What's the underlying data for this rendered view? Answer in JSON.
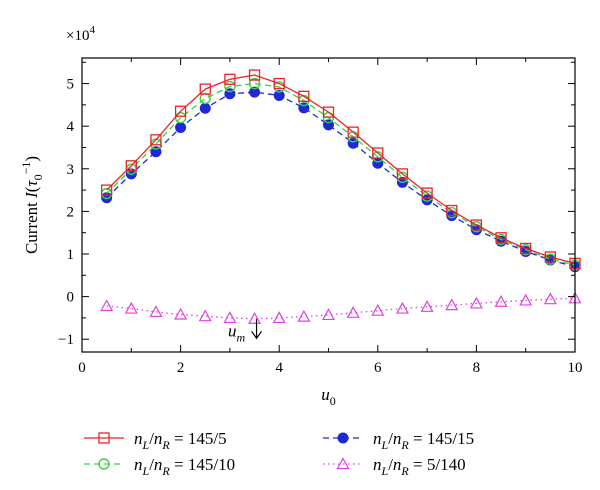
{
  "chart_data": {
    "type": "line",
    "multiplier_label": "×10⁴",
    "xlabel": "u0",
    "ylabel": "Current I(τ0⁻¹)",
    "xlim": [
      0,
      10
    ],
    "ylim": [
      -1.3,
      5.6
    ],
    "xticks": [
      0,
      2,
      4,
      6,
      8,
      10
    ],
    "yticks": [
      -1,
      0,
      1,
      2,
      3,
      4,
      5
    ],
    "x": [
      0.5,
      1.0,
      1.5,
      2.0,
      2.5,
      3.0,
      3.5,
      4.0,
      4.5,
      5.0,
      5.5,
      6.0,
      6.5,
      7.0,
      7.5,
      8.0,
      8.5,
      9.0,
      9.5,
      10.0
    ],
    "series": [
      {
        "name": "nL/nR = 145/5",
        "color": "#e8242a",
        "line": "solid",
        "marker": "square-open",
        "values": [
          2.5,
          3.07,
          3.68,
          4.35,
          4.87,
          5.1,
          5.2,
          5.0,
          4.7,
          4.33,
          3.86,
          3.37,
          2.88,
          2.43,
          2.02,
          1.68,
          1.38,
          1.13,
          0.93,
          0.78
        ]
      },
      {
        "name": "nL/nR = 145/10",
        "color": "#3cd03c",
        "line": "dashed",
        "marker": "circle-open",
        "values": [
          2.42,
          2.99,
          3.58,
          4.2,
          4.65,
          4.93,
          5.0,
          4.92,
          4.6,
          4.2,
          3.75,
          3.28,
          2.8,
          2.36,
          1.97,
          1.64,
          1.34,
          1.1,
          0.88,
          0.74
        ]
      },
      {
        "name": "nL/nR = 145/15",
        "color": "#1e28d8",
        "line": "dashed",
        "marker": "circle-filled",
        "values": [
          2.32,
          2.88,
          3.4,
          3.97,
          4.42,
          4.76,
          4.8,
          4.72,
          4.43,
          4.03,
          3.6,
          3.13,
          2.68,
          2.27,
          1.9,
          1.57,
          1.3,
          1.06,
          0.86,
          0.7
        ]
      },
      {
        "name": "nL/nR = 5/140",
        "color": "#e040e0",
        "line": "dotted",
        "marker": "triangle-open",
        "values": [
          -0.22,
          -0.28,
          -0.36,
          -0.42,
          -0.46,
          -0.5,
          -0.52,
          -0.5,
          -0.47,
          -0.43,
          -0.38,
          -0.33,
          -0.28,
          -0.24,
          -0.2,
          -0.16,
          -0.12,
          -0.09,
          -0.06,
          -0.04
        ]
      }
    ],
    "annotation": {
      "text": "um",
      "x": 3.5,
      "y": -0.72,
      "arrow": "down"
    },
    "grid": false,
    "legend_position": "bottom"
  }
}
